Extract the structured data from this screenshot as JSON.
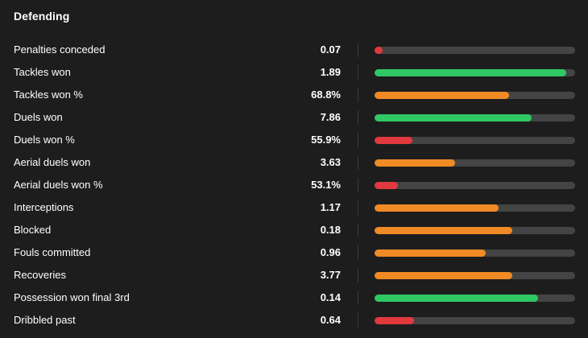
{
  "section": {
    "title": "Defending"
  },
  "colors": {
    "background": "#1d1d1d",
    "track": "#444444",
    "red": "#e0393e",
    "orange": "#f08a24",
    "green": "#2fc864"
  },
  "rows": [
    {
      "label": "Penalties conceded",
      "value": "0.07",
      "bar_fraction": 0.04,
      "color": "red"
    },
    {
      "label": "Tackles won",
      "value": "1.89",
      "bar_fraction": 0.955,
      "color": "green"
    },
    {
      "label": "Tackles won %",
      "value": "68.8%",
      "bar_fraction": 0.67,
      "color": "orange"
    },
    {
      "label": "Duels won",
      "value": "7.86",
      "bar_fraction": 0.785,
      "color": "green"
    },
    {
      "label": "Duels won %",
      "value": "55.9%",
      "bar_fraction": 0.19,
      "color": "red"
    },
    {
      "label": "Aerial duels won",
      "value": "3.63",
      "bar_fraction": 0.4,
      "color": "orange"
    },
    {
      "label": "Aerial duels won %",
      "value": "53.1%",
      "bar_fraction": 0.115,
      "color": "red"
    },
    {
      "label": "Interceptions",
      "value": "1.17",
      "bar_fraction": 0.62,
      "color": "orange"
    },
    {
      "label": "Blocked",
      "value": "0.18",
      "bar_fraction": 0.685,
      "color": "orange"
    },
    {
      "label": "Fouls committed",
      "value": "0.96",
      "bar_fraction": 0.555,
      "color": "orange"
    },
    {
      "label": "Recoveries",
      "value": "3.77",
      "bar_fraction": 0.685,
      "color": "orange"
    },
    {
      "label": "Possession won final 3rd",
      "value": "0.14",
      "bar_fraction": 0.815,
      "color": "green"
    },
    {
      "label": "Dribbled past",
      "value": "0.64",
      "bar_fraction": 0.195,
      "color": "red"
    }
  ]
}
